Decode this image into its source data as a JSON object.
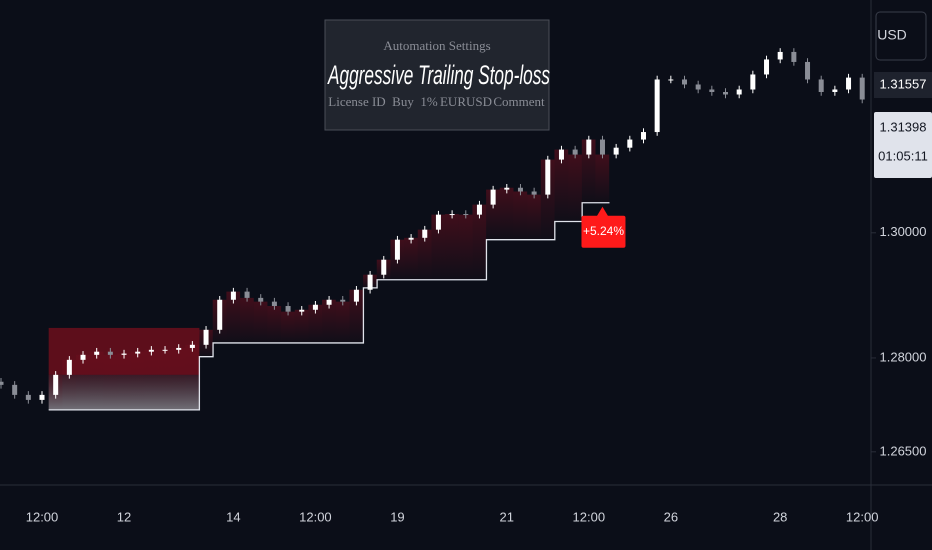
{
  "chart_data": {
    "type": "candlestick",
    "title": "Aggressive Trailing Stop-loss",
    "panel": {
      "heading": "Automation Settings",
      "cells": [
        "License ID",
        "Buy",
        "1%",
        "EURUSD",
        "Comment"
      ]
    },
    "currency": "USD",
    "price_tags": {
      "high": 1.31557,
      "last": 1.31398,
      "countdown": "01:05:11"
    },
    "categories": [
      null,
      null,
      null,
      "12:00",
      null,
      null,
      null,
      null,
      null,
      "12",
      null,
      null,
      null,
      null,
      null,
      null,
      null,
      "14",
      null,
      null,
      null,
      null,
      null,
      "12:00",
      null,
      null,
      null,
      null,
      null,
      "19",
      null,
      null,
      null,
      null,
      null,
      null,
      null,
      "21",
      null,
      null,
      null,
      null,
      null,
      "12:00",
      null,
      null,
      null,
      null,
      null,
      "26",
      null,
      null,
      null,
      null,
      null,
      null,
      null,
      "28",
      null,
      null,
      null,
      null,
      null,
      "12:00"
    ],
    "open": [
      1.2762,
      1.2757,
      1.2741,
      1.2733,
      1.2741,
      1.2773,
      1.2797,
      1.2805,
      1.281,
      1.2805,
      1.2807,
      1.281,
      1.2813,
      1.2813,
      1.2816,
      1.2821,
      1.2845,
      1.2893,
      1.2906,
      1.2896,
      1.289,
      1.2883,
      1.2874,
      1.2877,
      1.2885,
      1.2893,
      1.289,
      1.2909,
      1.2933,
      1.2957,
      1.2989,
      1.2992,
      1.3005,
      1.3029,
      1.303,
      1.3029,
      1.3045,
      1.3069,
      1.3072,
      1.3066,
      1.3061,
      1.3117,
      1.3133,
      1.3125,
      1.3149,
      1.3125,
      1.3136,
      1.3149,
      1.3161,
      1.3245,
      1.3245,
      1.3237,
      1.3229,
      1.3225,
      1.3221,
      1.3229,
      1.3253,
      1.3277,
      1.3289,
      1.3273,
      1.3245,
      1.3225,
      1.3229,
      1.3248
    ],
    "high": [
      1.2768,
      1.2763,
      1.2747,
      1.2747,
      1.2779,
      1.2803,
      1.2811,
      1.2816,
      1.2816,
      1.2813,
      1.2816,
      1.2819,
      1.2819,
      1.2822,
      1.2827,
      1.2851,
      1.2899,
      1.2912,
      1.2912,
      1.2902,
      1.2896,
      1.2889,
      1.2883,
      1.2891,
      1.2899,
      1.2899,
      1.2915,
      1.2939,
      1.2963,
      1.2995,
      1.2998,
      1.3011,
      1.3035,
      1.3036,
      1.3036,
      1.3051,
      1.3075,
      1.3078,
      1.3078,
      1.3072,
      1.3123,
      1.3139,
      1.3139,
      1.3155,
      1.3155,
      1.3142,
      1.3155,
      1.3167,
      1.3251,
      1.3251,
      1.3251,
      1.3243,
      1.3235,
      1.3231,
      1.3235,
      1.3259,
      1.3283,
      1.3295,
      1.3295,
      1.3279,
      1.3251,
      1.3235,
      1.3254,
      1.3254
    ],
    "low": [
      1.2751,
      1.2735,
      1.2727,
      1.2727,
      1.2735,
      1.2767,
      1.2791,
      1.2799,
      1.2799,
      1.2799,
      1.2801,
      1.2804,
      1.2807,
      1.2807,
      1.281,
      1.2815,
      1.2839,
      1.2887,
      1.289,
      1.2884,
      1.2877,
      1.2868,
      1.2868,
      1.2871,
      1.2879,
      1.2884,
      1.2884,
      1.2903,
      1.2927,
      1.2951,
      1.2983,
      1.2986,
      1.2999,
      1.3023,
      1.3023,
      1.3023,
      1.3039,
      1.3063,
      1.306,
      1.3055,
      1.3055,
      1.3111,
      1.3119,
      1.3119,
      1.3119,
      1.3119,
      1.313,
      1.3143,
      1.3155,
      1.3239,
      1.3231,
      1.3223,
      1.3219,
      1.3215,
      1.3215,
      1.3223,
      1.3247,
      1.3271,
      1.3267,
      1.3239,
      1.3219,
      1.3219,
      1.3223,
      1.3207
    ],
    "close": [
      1.2757,
      1.2741,
      1.2733,
      1.2741,
      1.2773,
      1.2797,
      1.2805,
      1.281,
      1.2805,
      1.2807,
      1.281,
      1.2813,
      1.2813,
      1.2816,
      1.2821,
      1.2845,
      1.2893,
      1.2906,
      1.2896,
      1.289,
      1.2883,
      1.2874,
      1.2877,
      1.2885,
      1.2893,
      1.289,
      1.2909,
      1.2933,
      1.2957,
      1.2989,
      1.2992,
      1.3005,
      1.3029,
      1.303,
      1.3029,
      1.3045,
      1.3069,
      1.3072,
      1.3066,
      1.3061,
      1.3117,
      1.3133,
      1.3125,
      1.3149,
      1.3125,
      1.3136,
      1.3149,
      1.3161,
      1.3245,
      1.3245,
      1.3237,
      1.3229,
      1.3225,
      1.3221,
      1.3229,
      1.3253,
      1.3277,
      1.3289,
      1.3273,
      1.3245,
      1.3225,
      1.3229,
      1.3248,
      1.3213
    ],
    "up_color": "#ffffff",
    "down_color": "#8a8d96",
    "stop": {
      "color": "#e0e3eb",
      "values": [
        null,
        null,
        null,
        null,
        1.2717,
        1.2717,
        1.2717,
        1.2717,
        1.2717,
        1.2717,
        1.2717,
        1.2717,
        1.2717,
        1.2717,
        1.2717,
        1.2802,
        1.2824,
        1.2824,
        1.2824,
        1.2824,
        1.2824,
        1.2824,
        1.2824,
        1.2824,
        1.2824,
        1.2824,
        1.2824,
        1.2912,
        1.2925,
        1.2925,
        1.2925,
        1.2925,
        1.2925,
        1.2925,
        1.2925,
        1.2925,
        1.2989,
        1.2989,
        1.2989,
        1.2989,
        1.2989,
        1.3018,
        1.3018,
        1.3048,
        1.3048,
        null,
        null,
        null,
        null,
        null,
        null,
        null,
        null,
        null,
        null,
        null,
        null,
        null,
        null,
        null,
        null,
        null,
        null,
        null
      ]
    },
    "position": {
      "start": 4,
      "end": 14,
      "target": 1.2848,
      "entry": 1.2773,
      "stop": 1.2717
    },
    "annotation": {
      "index": 44,
      "values": [
        5.24
      ],
      "value_labels": [
        "+5.24%"
      ],
      "color": "#ff1a1a"
    },
    "ylim": [
      1.2597,
      1.3372
    ],
    "yticks": [
      {
        "value": 1.265,
        "label": "1.26500"
      },
      {
        "value": 1.28,
        "label": "1.28000"
      },
      {
        "value": 1.3,
        "label": "1.30000"
      }
    ],
    "grid": false
  }
}
